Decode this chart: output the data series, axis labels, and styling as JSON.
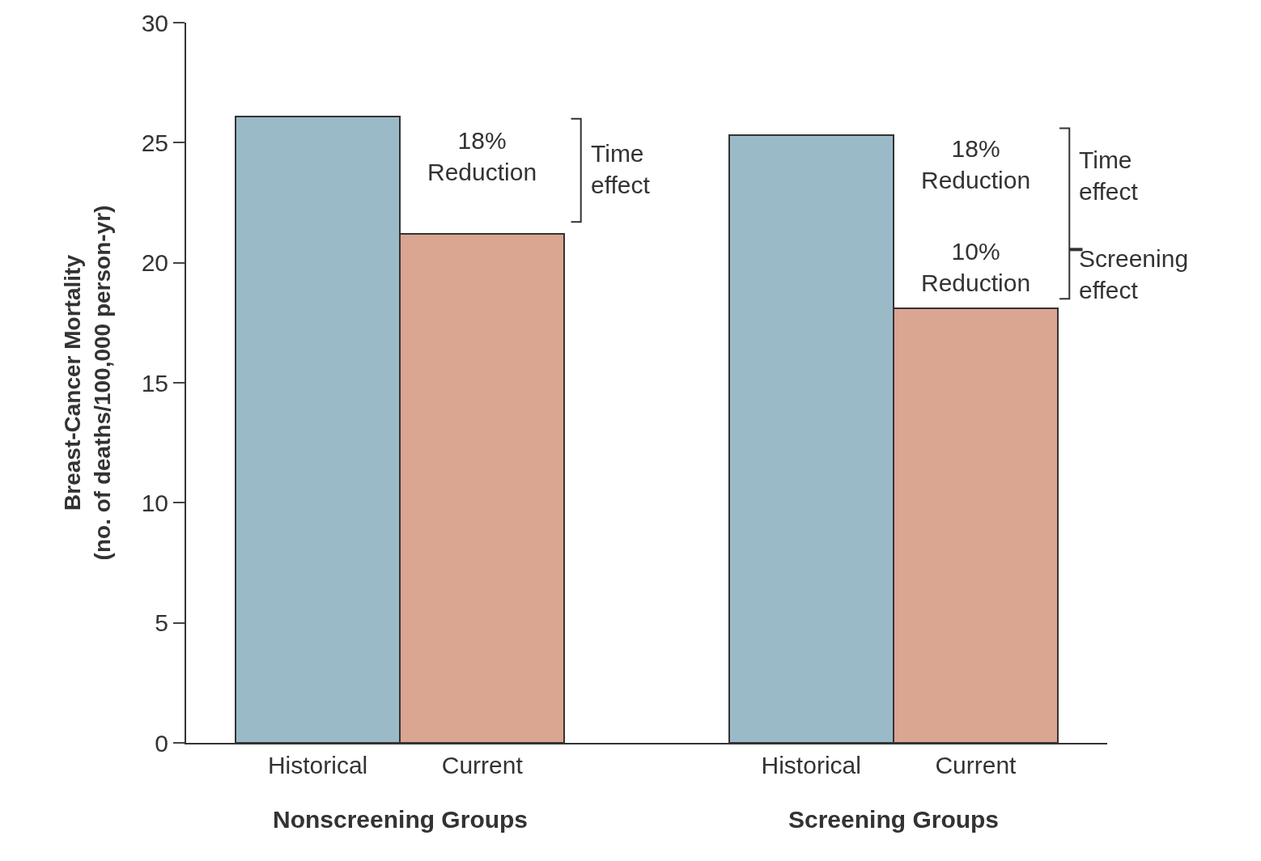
{
  "chart_data": {
    "type": "bar",
    "ylabel": "Breast-Cancer Mortality\n(no. of deaths/100,000 person-yr)",
    "categories": [
      "Historical",
      "Current",
      null,
      "Historical",
      "Current"
    ],
    "values": [
      26.1,
      21.2,
      null,
      25.3,
      18.1
    ],
    "colors": [
      "#9bbac8",
      "#daa591",
      "#ffffff",
      "#9bbac8",
      "#daa591"
    ],
    "ylim": [
      0,
      30
    ],
    "yticks": [
      0,
      5,
      10,
      15,
      20,
      25,
      30
    ],
    "legend": false,
    "annotations": [
      "18%\nReduction",
      "Time\neffect",
      "18%\nReduction",
      "10%\nReduction",
      "Time\neffect",
      "Screening\neffect",
      "Nonscreening Groups",
      "Screening Groups"
    ]
  }
}
